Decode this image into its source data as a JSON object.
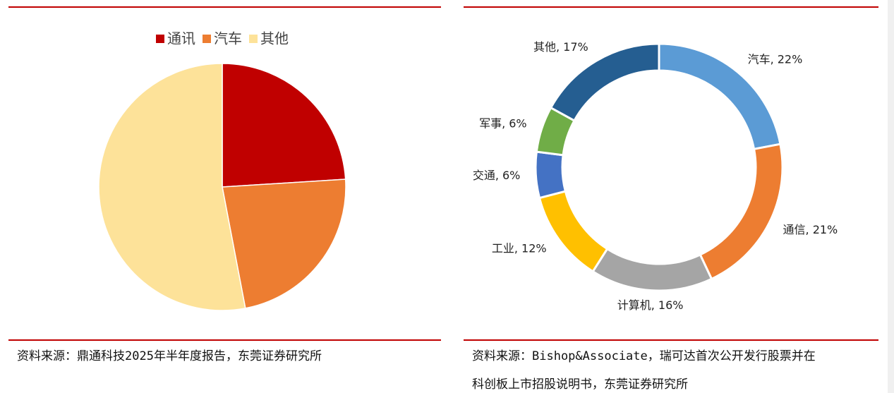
{
  "chart_data": [
    {
      "type": "pie",
      "categories": [
        "通讯",
        "汽车",
        "其他"
      ],
      "values": [
        24,
        23,
        53
      ],
      "colors": [
        "#c00000",
        "#ed7d31",
        "#fde299"
      ],
      "legend": "top",
      "source": [
        "资料来源：鼎通科技2025年半年度报告，东莞证券研究所"
      ]
    },
    {
      "type": "donut",
      "values": [
        22,
        21,
        16,
        12,
        6,
        6,
        17
      ],
      "value_labels": [
        "汽车, 22%",
        "通信, 21%",
        "计算机, 16%",
        "工业, 12%",
        "交通, 6%",
        "军事, 6%",
        "其他, 17%"
      ],
      "colors": [
        "#5b9bd5",
        "#ed7d31",
        "#a5a5a5",
        "#ffc000",
        "#4472c4",
        "#70ad47",
        "#255e91"
      ],
      "source": [
        "资料来源：Bishop&Associate，瑞可达首次公开发行股票并在",
        "科创板上市招股说明书，东莞证券研究所"
      ]
    }
  ]
}
